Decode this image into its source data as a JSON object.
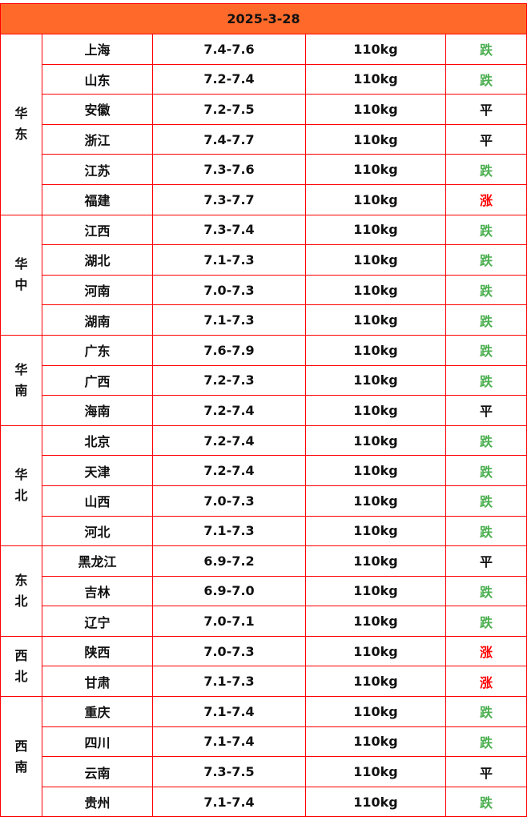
{
  "title": "2025-3-28",
  "colors": {
    "header_bg": "#ff6a2a",
    "border": "#ff0000",
    "down": "#4caf50",
    "up": "#ff0000",
    "flat": "#111111"
  },
  "trend_colors": {
    "跌": "#4caf50",
    "涨": "#ff0000",
    "平": "#111111"
  },
  "regions": [
    {
      "name": "华东",
      "rows": [
        {
          "province": "上海",
          "price": "7.4-7.6",
          "weight": "110kg",
          "trend": "跌"
        },
        {
          "province": "山东",
          "price": "7.2-7.4",
          "weight": "110kg",
          "trend": "跌"
        },
        {
          "province": "安徽",
          "price": "7.2-7.5",
          "weight": "110kg",
          "trend": "平"
        },
        {
          "province": "浙江",
          "price": "7.4-7.7",
          "weight": "110kg",
          "trend": "平"
        },
        {
          "province": "江苏",
          "price": "7.3-7.6",
          "weight": "110kg",
          "trend": "跌"
        },
        {
          "province": "福建",
          "price": "7.3-7.7",
          "weight": "110kg",
          "trend": "涨"
        }
      ]
    },
    {
      "name": "华中",
      "rows": [
        {
          "province": "江西",
          "price": "7.3-7.4",
          "weight": "110kg",
          "trend": "跌"
        },
        {
          "province": "湖北",
          "price": "7.1-7.3",
          "weight": "110kg",
          "trend": "跌"
        },
        {
          "province": "河南",
          "price": "7.0-7.3",
          "weight": "110kg",
          "trend": "跌"
        },
        {
          "province": "湖南",
          "price": "7.1-7.3",
          "weight": "110kg",
          "trend": "跌"
        }
      ]
    },
    {
      "name": "华南",
      "rows": [
        {
          "province": "广东",
          "price": "7.6-7.9",
          "weight": "110kg",
          "trend": "跌"
        },
        {
          "province": "广西",
          "price": "7.2-7.3",
          "weight": "110kg",
          "trend": "跌"
        },
        {
          "province": "海南",
          "price": "7.2-7.4",
          "weight": "110kg",
          "trend": "平"
        }
      ]
    },
    {
      "name": "华北",
      "rows": [
        {
          "province": "北京",
          "price": "7.2-7.4",
          "weight": "110kg",
          "trend": "跌"
        },
        {
          "province": "天津",
          "price": "7.2-7.4",
          "weight": "110kg",
          "trend": "跌"
        },
        {
          "province": "山西",
          "price": "7.0-7.3",
          "weight": "110kg",
          "trend": "跌"
        },
        {
          "province": "河北",
          "price": "7.1-7.3",
          "weight": "110kg",
          "trend": "跌"
        }
      ]
    },
    {
      "name": "东北",
      "rows": [
        {
          "province": "黑龙江",
          "price": "6.9-7.2",
          "weight": "110kg",
          "trend": "平"
        },
        {
          "province": "吉林",
          "price": "6.9-7.0",
          "weight": "110kg",
          "trend": "跌"
        },
        {
          "province": "辽宁",
          "price": "7.0-7.1",
          "weight": "110kg",
          "trend": "跌"
        }
      ]
    },
    {
      "name": "西北",
      "rows": [
        {
          "province": "陕西",
          "price": "7.0-7.3",
          "weight": "110kg",
          "trend": "涨"
        },
        {
          "province": "甘肃",
          "price": "7.1-7.3",
          "weight": "110kg",
          "trend": "涨"
        }
      ]
    },
    {
      "name": "西南",
      "rows": [
        {
          "province": "重庆",
          "price": "7.1-7.4",
          "weight": "110kg",
          "trend": "跌"
        },
        {
          "province": "四川",
          "price": "7.1-7.4",
          "weight": "110kg",
          "trend": "跌"
        },
        {
          "province": "云南",
          "price": "7.3-7.5",
          "weight": "110kg",
          "trend": "平"
        },
        {
          "province": "贵州",
          "price": "7.1-7.4",
          "weight": "110kg",
          "trend": "跌"
        }
      ]
    }
  ]
}
